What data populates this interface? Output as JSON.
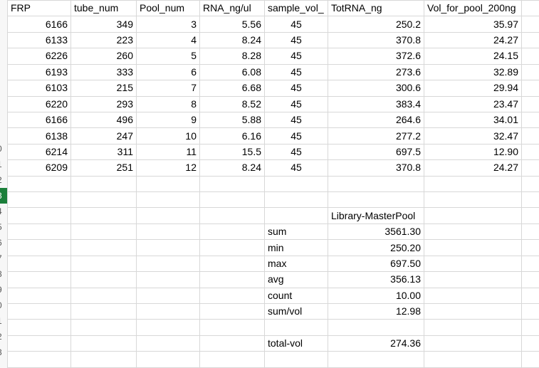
{
  "sheet": {
    "columns": [
      "FRP",
      "tube_num",
      "Pool_num",
      "RNA_ng/ul",
      "sample_vol_",
      "TotRNA_ng",
      "Vol_for_pool_200ng"
    ],
    "rows": [
      [
        "6166",
        "349",
        "3",
        "5.56",
        "45",
        "250.2",
        "35.97"
      ],
      [
        "6133",
        "223",
        "4",
        "8.24",
        "45",
        "370.8",
        "24.27"
      ],
      [
        "6226",
        "260",
        "5",
        "8.28",
        "45",
        "372.6",
        "24.15"
      ],
      [
        "6193",
        "333",
        "6",
        "6.08",
        "45",
        "273.6",
        "32.89"
      ],
      [
        "6103",
        "215",
        "7",
        "6.68",
        "45",
        "300.6",
        "29.94"
      ],
      [
        "6220",
        "293",
        "8",
        "8.52",
        "45",
        "383.4",
        "23.47"
      ],
      [
        "6166",
        "496",
        "9",
        "5.88",
        "45",
        "264.6",
        "34.01"
      ],
      [
        "6138",
        "247",
        "10",
        "6.16",
        "45",
        "277.2",
        "32.47"
      ],
      [
        "6214",
        "311",
        "11",
        "15.5",
        "45",
        "697.5",
        "12.90"
      ],
      [
        "6209",
        "251",
        "12",
        "8.24",
        "45",
        "370.8",
        "24.27"
      ]
    ],
    "summary_header": "Library-MasterPool",
    "summary": [
      {
        "label": "sum",
        "value": "3561.30"
      },
      {
        "label": "min",
        "value": "250.20"
      },
      {
        "label": "max",
        "value": "697.50"
      },
      {
        "label": "avg",
        "value": "356.13"
      },
      {
        "label": "count",
        "value": "10.00"
      },
      {
        "label": "sum/vol",
        "value": "12.98"
      }
    ],
    "total": {
      "label": "total-vol",
      "value": "274.36"
    },
    "row_numbers": [
      "",
      "",
      "",
      "",
      "",
      "",
      "",
      "",
      "",
      "0",
      "1",
      "2",
      "3",
      "4",
      "5",
      "6",
      "7",
      "8",
      "9",
      "0",
      "1",
      "2",
      "3"
    ],
    "colors": {
      "active_row_header": "#1b7f3a",
      "gridline": "#d8d8d8"
    }
  }
}
